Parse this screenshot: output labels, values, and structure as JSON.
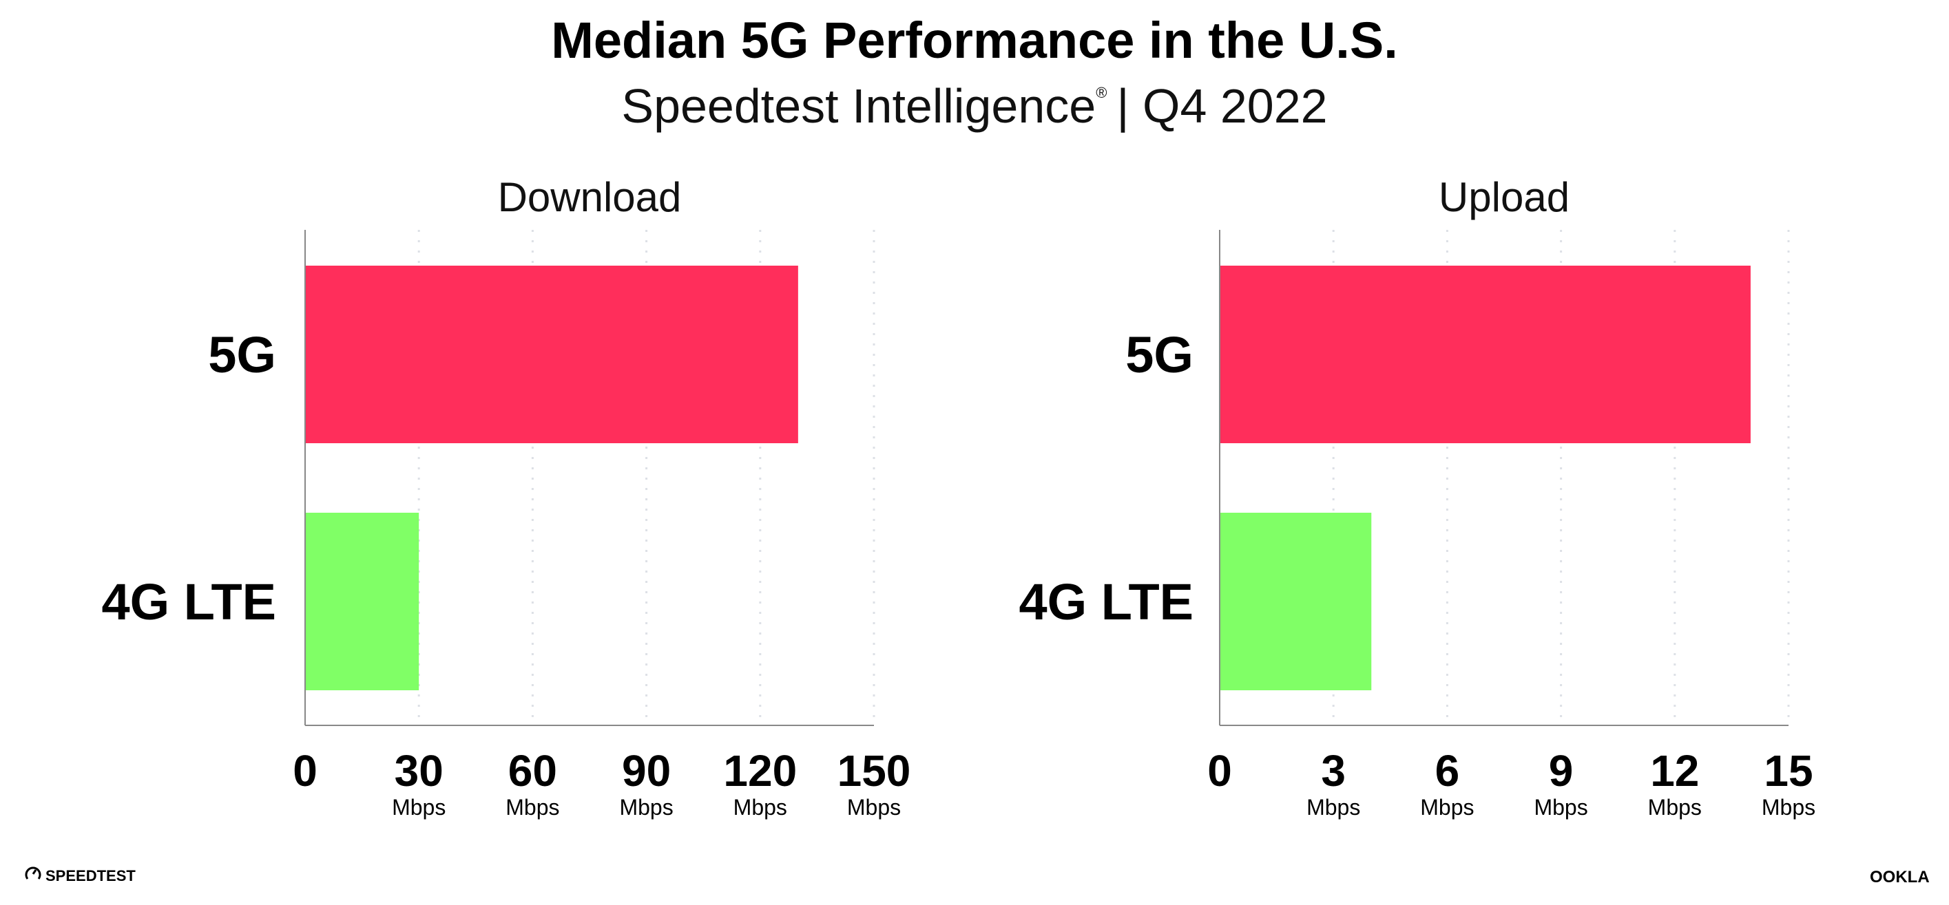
{
  "header": {
    "title": "Median 5G Performance in the U.S.",
    "subtitle": "Speedtest Intelligence",
    "subtitle_mark": "®",
    "subtitle_period": "| Q4 2022"
  },
  "colors": {
    "5G": "#ff2e5b",
    "4G LTE": "#80ff66",
    "axis": "#888888",
    "grid": "#dde0e6"
  },
  "chart_data": [
    {
      "type": "bar",
      "orientation": "horizontal",
      "title": "Download",
      "categories": [
        "5G",
        "4G LTE"
      ],
      "values": [
        130,
        30
      ],
      "xlim": [
        0,
        150
      ],
      "ticks": [
        "0",
        "30",
        "60",
        "90",
        "120",
        "150"
      ],
      "tick_values": [
        0,
        30,
        60,
        90,
        120,
        150
      ],
      "unit": "Mbps",
      "grid": true
    },
    {
      "type": "bar",
      "orientation": "horizontal",
      "title": "Upload",
      "categories": [
        "5G",
        "4G LTE"
      ],
      "values": [
        14,
        4
      ],
      "xlim": [
        0,
        15
      ],
      "ticks": [
        "0",
        "3",
        "6",
        "9",
        "12",
        "15"
      ],
      "tick_values": [
        0,
        3,
        6,
        9,
        12,
        15
      ],
      "unit": "Mbps",
      "grid": true
    }
  ],
  "footer": {
    "left_logo": "SPEEDTEST",
    "right_logo": "OOKLA"
  }
}
